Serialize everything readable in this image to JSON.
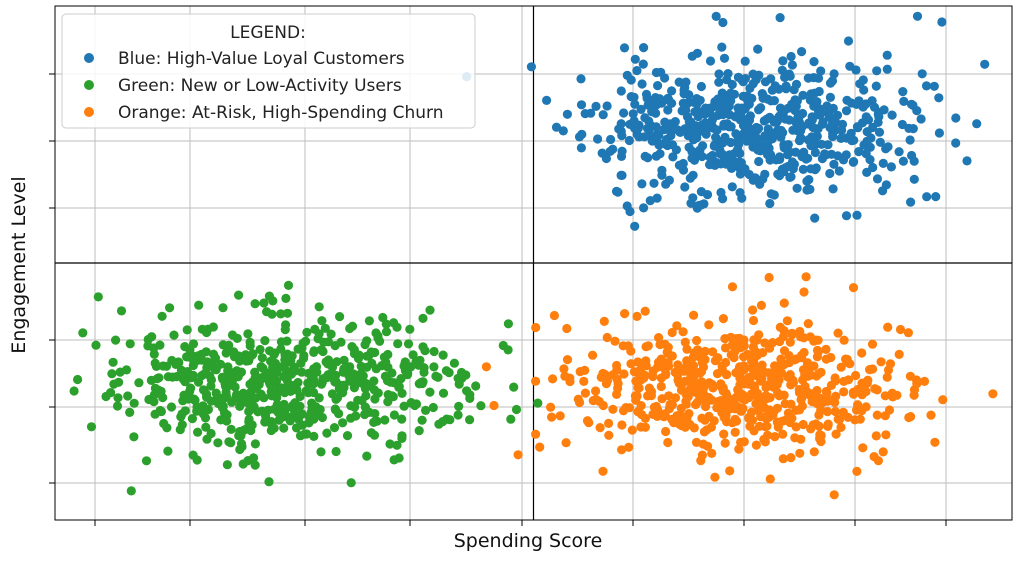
{
  "chart_data": {
    "type": "scatter",
    "title": "",
    "xlabel": "Spending Score",
    "ylabel": "Engagement Level",
    "xlim": [
      0,
      100
    ],
    "ylim": [
      0,
      100
    ],
    "grid": true,
    "tick_labels_visible": false,
    "quadrant_dividers": {
      "x": 50,
      "y": 50
    },
    "legend": {
      "title": "LEGEND:",
      "placement": "top-left",
      "entries": [
        {
          "label": "Blue: High-Value Loyal Customers",
          "color": "#1f77b4"
        },
        {
          "label": "Green: New or Low-Activity Users",
          "color": "#2ca02c"
        },
        {
          "label": "Orange: At-Risk, High-Spending Churn",
          "color": "#ff7f0e"
        }
      ]
    },
    "series": [
      {
        "color": "#1f77b4",
        "center": [
          72.5,
          76.5
        ],
        "spread": [
          8.5,
          6.8
        ],
        "count": 620,
        "seed": 11
      },
      {
        "color": "#2ca02c",
        "center": [
          24.0,
          27.0
        ],
        "spread": [
          9.0,
          6.4
        ],
        "count": 620,
        "seed": 29
      },
      {
        "color": "#ff7f0e",
        "center": [
          72.0,
          25.5
        ],
        "spread": [
          8.8,
          6.6
        ],
        "count": 620,
        "seed": 47
      }
    ]
  }
}
